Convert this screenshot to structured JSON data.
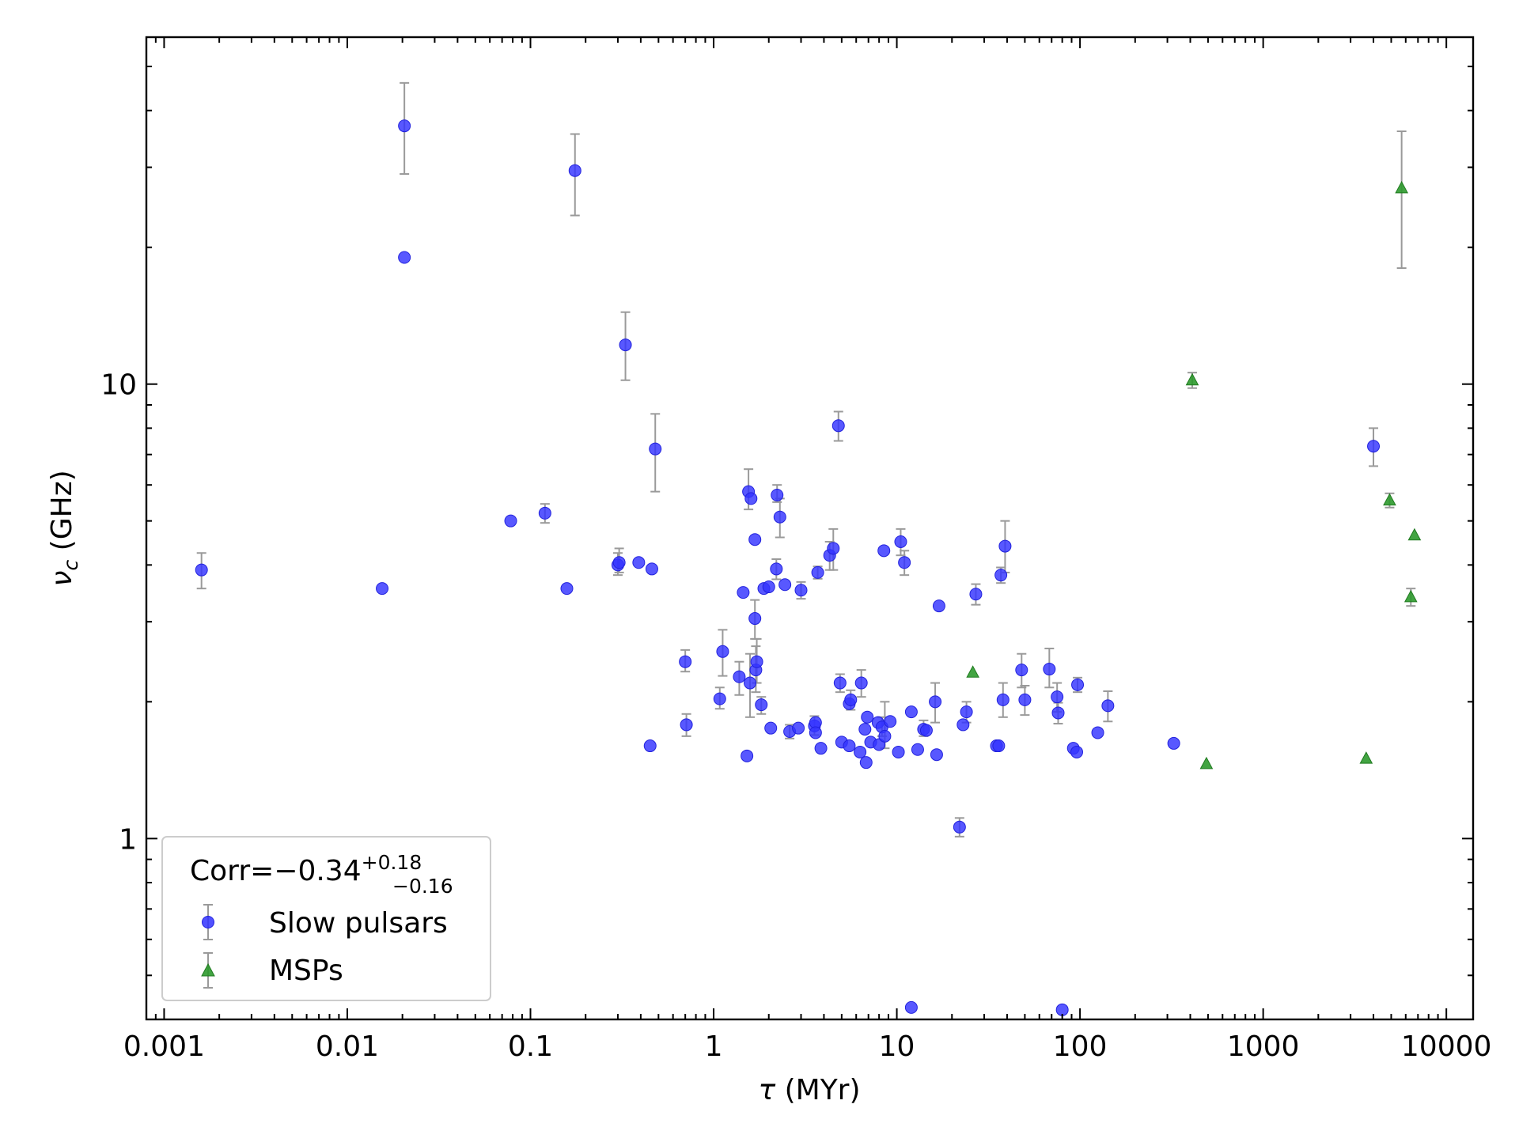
{
  "chart_data": {
    "type": "scatter",
    "xscale": "log",
    "yscale": "log",
    "xlim": [
      0.0008,
      14000
    ],
    "ylim": [
      0.4,
      58
    ],
    "x_ticks": [
      {
        "value": 0.001,
        "label": "0.001"
      },
      {
        "value": 0.01,
        "label": "0.01"
      },
      {
        "value": 0.1,
        "label": "0.1"
      },
      {
        "value": 1,
        "label": "1"
      },
      {
        "value": 10,
        "label": "10"
      },
      {
        "value": 100,
        "label": "100"
      },
      {
        "value": 1000,
        "label": "1000"
      },
      {
        "value": 10000,
        "label": "10000"
      }
    ],
    "y_ticks": [
      {
        "value": 1,
        "label": "1"
      },
      {
        "value": 10,
        "label": "10"
      }
    ],
    "xlabel": {
      "symbol": "τ",
      "unit": " (MYr)"
    },
    "ylabel": {
      "symbol": "ν",
      "sub": "c",
      "unit": " (GHz)"
    },
    "annotation": {
      "prefix": "Corr=−0.34",
      "sup": "+0.18",
      "sub": "−0.16"
    },
    "legend_position": "lower-left",
    "colors": {
      "slow": "#3333ff",
      "msp": "#2e9a2e",
      "errorbar": "#9a9a9a"
    },
    "series": [
      {
        "name": "Slow pulsars",
        "marker": "circle",
        "points": [
          {
            "x": 0.0016,
            "y": 3.9,
            "yl": 3.55,
            "yh": 4.25
          },
          {
            "x": 0.0155,
            "y": 3.55
          },
          {
            "x": 0.0205,
            "y": 37,
            "yl": 29,
            "yh": 46
          },
          {
            "x": 0.0205,
            "y": 19
          },
          {
            "x": 0.078,
            "y": 5.0
          },
          {
            "x": 0.12,
            "y": 5.2,
            "yl": 4.95,
            "yh": 5.45
          },
          {
            "x": 0.158,
            "y": 3.55
          },
          {
            "x": 0.175,
            "y": 29.5,
            "yl": 23.5,
            "yh": 35.5
          },
          {
            "x": 0.3,
            "y": 4.0,
            "yl": 3.8,
            "yh": 4.25
          },
          {
            "x": 0.305,
            "y": 4.05,
            "yl": 3.85,
            "yh": 4.35
          },
          {
            "x": 0.33,
            "y": 12.2,
            "yl": 10.2,
            "yh": 14.4
          },
          {
            "x": 0.39,
            "y": 4.05
          },
          {
            "x": 0.45,
            "y": 1.6
          },
          {
            "x": 0.46,
            "y": 3.92
          },
          {
            "x": 0.48,
            "y": 7.2,
            "yl": 5.8,
            "yh": 8.6
          },
          {
            "x": 0.7,
            "y": 2.45,
            "yl": 2.33,
            "yh": 2.6
          },
          {
            "x": 0.71,
            "y": 1.78,
            "yl": 1.68,
            "yh": 1.88
          },
          {
            "x": 1.08,
            "y": 2.03,
            "yl": 1.93,
            "yh": 2.15
          },
          {
            "x": 1.12,
            "y": 2.58,
            "yl": 2.28,
            "yh": 2.88
          },
          {
            "x": 1.38,
            "y": 2.27,
            "yl": 2.07,
            "yh": 2.45
          },
          {
            "x": 1.45,
            "y": 3.48
          },
          {
            "x": 1.52,
            "y": 1.52
          },
          {
            "x": 1.55,
            "y": 5.8,
            "yl": 5.3,
            "yh": 6.5
          },
          {
            "x": 1.58,
            "y": 2.2,
            "yl": 1.85,
            "yh": 2.55
          },
          {
            "x": 1.6,
            "y": 5.6
          },
          {
            "x": 1.68,
            "y": 4.55
          },
          {
            "x": 1.68,
            "y": 3.05,
            "yl": 2.75,
            "yh": 3.35
          },
          {
            "x": 1.7,
            "y": 2.35,
            "yl": 2.1,
            "yh": 2.65
          },
          {
            "x": 1.72,
            "y": 2.45,
            "yl": 2.2,
            "yh": 2.75
          },
          {
            "x": 1.82,
            "y": 1.97,
            "yl": 1.88,
            "yh": 2.05
          },
          {
            "x": 1.88,
            "y": 3.55
          },
          {
            "x": 2.0,
            "y": 3.58
          },
          {
            "x": 2.05,
            "y": 1.75
          },
          {
            "x": 2.2,
            "y": 3.92,
            "yl": 3.72,
            "yh": 4.12
          },
          {
            "x": 2.22,
            "y": 5.7,
            "yl": 5.5,
            "yh": 6.0
          },
          {
            "x": 2.3,
            "y": 5.1,
            "yl": 4.6,
            "yh": 5.6
          },
          {
            "x": 2.45,
            "y": 3.62
          },
          {
            "x": 2.6,
            "y": 1.72,
            "yl": 1.66,
            "yh": 1.78
          },
          {
            "x": 2.9,
            "y": 1.75
          },
          {
            "x": 3.0,
            "y": 3.52,
            "yl": 3.37,
            "yh": 3.67
          },
          {
            "x": 3.55,
            "y": 1.77,
            "yl": 1.69,
            "yh": 1.86
          },
          {
            "x": 3.6,
            "y": 1.8
          },
          {
            "x": 3.6,
            "y": 1.71
          },
          {
            "x": 3.7,
            "y": 3.85,
            "yl": 3.73,
            "yh": 3.97
          },
          {
            "x": 3.85,
            "y": 1.58
          },
          {
            "x": 4.3,
            "y": 4.2,
            "yl": 3.9,
            "yh": 4.5
          },
          {
            "x": 4.5,
            "y": 4.35,
            "yl": 3.9,
            "yh": 4.8
          },
          {
            "x": 4.8,
            "y": 8.1,
            "yl": 7.5,
            "yh": 8.7
          },
          {
            "x": 4.9,
            "y": 2.2,
            "yl": 2.1,
            "yh": 2.3
          },
          {
            "x": 5.0,
            "y": 1.63
          },
          {
            "x": 5.5,
            "y": 1.6
          },
          {
            "x": 5.5,
            "y": 1.98
          },
          {
            "x": 5.6,
            "y": 2.02,
            "yl": 1.92,
            "yh": 2.12
          },
          {
            "x": 6.3,
            "y": 1.55
          },
          {
            "x": 6.4,
            "y": 2.2,
            "yl": 2.05,
            "yh": 2.35
          },
          {
            "x": 6.7,
            "y": 1.74
          },
          {
            "x": 6.8,
            "y": 1.47
          },
          {
            "x": 6.9,
            "y": 1.85
          },
          {
            "x": 7.2,
            "y": 1.63
          },
          {
            "x": 7.9,
            "y": 1.8
          },
          {
            "x": 8.0,
            "y": 1.61
          },
          {
            "x": 8.3,
            "y": 1.76,
            "yl": 1.68,
            "yh": 1.85
          },
          {
            "x": 8.5,
            "y": 4.3
          },
          {
            "x": 8.6,
            "y": 1.68,
            "yl": 1.58,
            "yh": 2.0
          },
          {
            "x": 9.2,
            "y": 1.81
          },
          {
            "x": 10.2,
            "y": 1.55
          },
          {
            "x": 10.5,
            "y": 4.5,
            "yl": 4.2,
            "yh": 4.8
          },
          {
            "x": 11.0,
            "y": 4.05,
            "yl": 3.8,
            "yh": 4.3
          },
          {
            "x": 12.0,
            "y": 1.9
          },
          {
            "x": 12.0,
            "y": 0.425
          },
          {
            "x": 13.0,
            "y": 1.57
          },
          {
            "x": 14.0,
            "y": 1.74,
            "yl": 1.68,
            "yh": 1.82
          },
          {
            "x": 14.5,
            "y": 1.73
          },
          {
            "x": 16.2,
            "y": 2.0,
            "yl": 1.8,
            "yh": 2.2
          },
          {
            "x": 16.5,
            "y": 1.53
          },
          {
            "x": 17.0,
            "y": 3.25
          },
          {
            "x": 22.0,
            "y": 1.06,
            "yl": 1.01,
            "yh": 1.11
          },
          {
            "x": 23.0,
            "y": 1.78
          },
          {
            "x": 24.0,
            "y": 1.9,
            "yl": 1.8,
            "yh": 2.0
          },
          {
            "x": 27.0,
            "y": 3.45,
            "yl": 3.27,
            "yh": 3.63
          },
          {
            "x": 35.0,
            "y": 1.6
          },
          {
            "x": 36.0,
            "y": 1.6
          },
          {
            "x": 37.0,
            "y": 3.8,
            "yl": 3.65,
            "yh": 3.95
          },
          {
            "x": 38.0,
            "y": 2.02,
            "yl": 1.85,
            "yh": 2.2
          },
          {
            "x": 39.0,
            "y": 4.4,
            "yl": 3.85,
            "yh": 5.0
          },
          {
            "x": 48.0,
            "y": 2.35,
            "yl": 2.15,
            "yh": 2.55
          },
          {
            "x": 50.0,
            "y": 2.02,
            "yl": 1.87,
            "yh": 2.17
          },
          {
            "x": 68.0,
            "y": 2.36,
            "yl": 2.15,
            "yh": 2.62
          },
          {
            "x": 75.0,
            "y": 2.05,
            "yl": 1.9,
            "yh": 2.2
          },
          {
            "x": 76.0,
            "y": 1.89,
            "yl": 1.79,
            "yh": 1.99
          },
          {
            "x": 80.0,
            "y": 0.42
          },
          {
            "x": 92.0,
            "y": 1.58
          },
          {
            "x": 96.0,
            "y": 1.55
          },
          {
            "x": 97.0,
            "y": 2.18,
            "yl": 2.1,
            "yh": 2.26
          },
          {
            "x": 125.0,
            "y": 1.71
          },
          {
            "x": 142.0,
            "y": 1.96,
            "yl": 1.81,
            "yh": 2.11
          },
          {
            "x": 325.0,
            "y": 1.62
          },
          {
            "x": 4000.0,
            "y": 7.3,
            "yl": 6.6,
            "yh": 8.0
          }
        ]
      },
      {
        "name": "MSPs",
        "marker": "triangle",
        "points": [
          {
            "x": 26.0,
            "y": 2.32
          },
          {
            "x": 410.0,
            "y": 10.2,
            "yl": 9.8,
            "yh": 10.6
          },
          {
            "x": 490.0,
            "y": 1.46
          },
          {
            "x": 3650.0,
            "y": 1.5
          },
          {
            "x": 4900.0,
            "y": 5.55,
            "yl": 5.35,
            "yh": 5.75
          },
          {
            "x": 5700.0,
            "y": 27,
            "yl": 18,
            "yh": 36
          },
          {
            "x": 6400.0,
            "y": 3.4,
            "yl": 3.25,
            "yh": 3.55
          },
          {
            "x": 6700.0,
            "y": 4.65
          }
        ]
      }
    ]
  }
}
